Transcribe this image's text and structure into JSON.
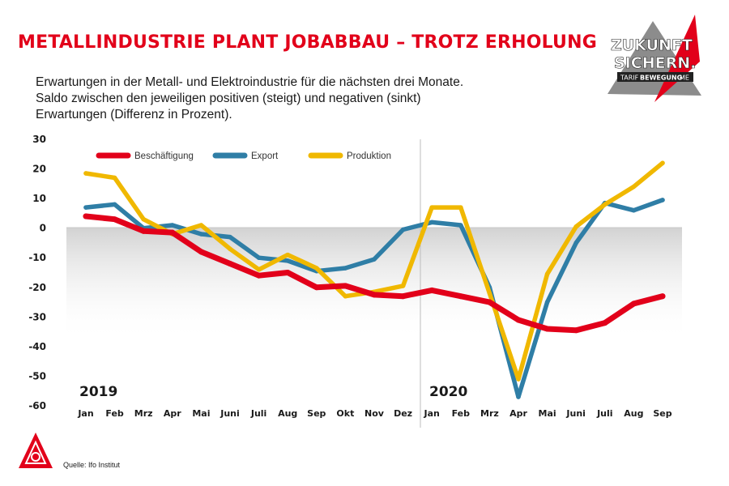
{
  "header": {
    "headline": "METALLINDUSTRIE PLANT JOBABBAU – TROTZ ERHOLUNG",
    "subtitle_lines": [
      "Erwartungen in der Metall- und Elektroindustrie für die nächsten drei Monate.",
      "Saldo zwischen den jeweiligen positiven (steigt) und negativen (sinkt)",
      "Erwartungen (Differenz in Prozent)."
    ]
  },
  "badge": {
    "line1": "ZUKUNFT",
    "line2": "SICHERN.",
    "tag_a": "TARIF",
    "tag_b": "BEWEGUNG",
    "tag_c": "ME",
    "colors": {
      "red": "#e2001a",
      "grey": "#8c8c8c",
      "dark": "#222222"
    }
  },
  "footer": {
    "source": "Quelle: Ifo Institut",
    "logo_icon": "ig-metall-logo-icon"
  },
  "chart_data": {
    "type": "line",
    "year_labels": [
      "2019",
      "2020"
    ],
    "x": [
      "Jan",
      "Feb",
      "Mrz",
      "Apr",
      "Mai",
      "Juni",
      "Juli",
      "Aug",
      "Sep",
      "Okt",
      "Nov",
      "Dez",
      "Jan",
      "Feb",
      "Mrz",
      "Apr",
      "Mai",
      "Juni",
      "Juli",
      "Aug",
      "Sep"
    ],
    "ylim": [
      -60,
      30
    ],
    "yticks": [
      30,
      20,
      10,
      0,
      -10,
      -20,
      -30,
      -40,
      -50,
      -60
    ],
    "legend_position": "top-left",
    "background": "grey gradient below zero line",
    "series": [
      {
        "name": "Beschäftigung",
        "color": "#e2001a",
        "values": [
          4,
          3,
          -1,
          -1.5,
          -8,
          -12,
          -16,
          -15,
          -20,
          -19.5,
          -22.5,
          -23,
          -21,
          -23,
          -25,
          -31,
          -34,
          -34.5,
          -32,
          -25.5,
          -23
        ]
      },
      {
        "name": "Export",
        "color": "#2f7ea6",
        "values": [
          7,
          8,
          0,
          1,
          -2,
          -3,
          -10,
          -11,
          -14.5,
          -13.5,
          -10.5,
          -0.5,
          2,
          1,
          -20,
          -57,
          -25,
          -5,
          8.5,
          6,
          9.5
        ]
      },
      {
        "name": "Produktion",
        "color": "#f0b800",
        "values": [
          18.5,
          17,
          3,
          -2,
          1,
          -7,
          -14,
          -9,
          -13.5,
          -23,
          -21.5,
          -19.5,
          7,
          7,
          -22,
          -51,
          -15.5,
          0.5,
          8,
          14,
          22
        ]
      }
    ]
  }
}
